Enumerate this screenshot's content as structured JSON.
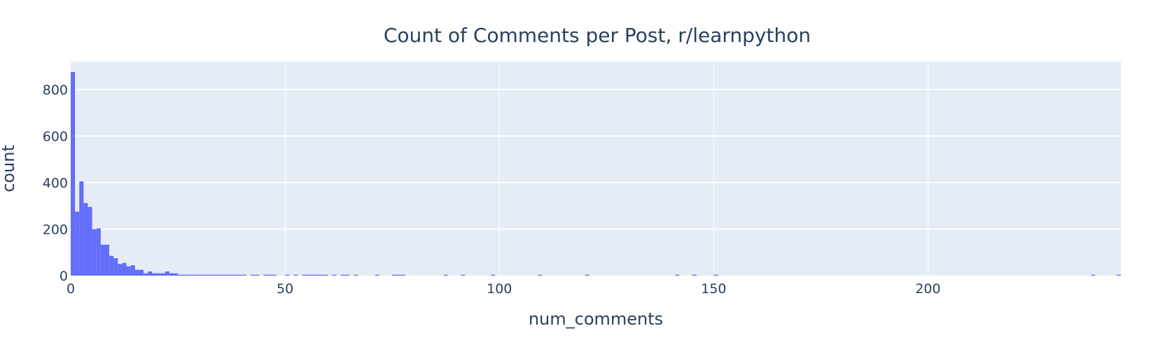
{
  "chart_data": {
    "type": "bar",
    "title": "Count of Comments per Post, r/learnpython",
    "xlabel": "num_comments",
    "ylabel": "count",
    "xlim": [
      0,
      245
    ],
    "ylim": [
      0,
      920
    ],
    "xticks": [
      0,
      50,
      100,
      150,
      200
    ],
    "yticks": [
      0,
      200,
      400,
      600,
      800
    ],
    "grid": true,
    "colors": {
      "bar": "#636efa",
      "plot_bg": "#e5ecf6",
      "grid": "#ffffff",
      "text": "#2a3f5f"
    },
    "bin_width": 1,
    "bins": [
      {
        "x": 0,
        "y": 875
      },
      {
        "x": 1,
        "y": 275
      },
      {
        "x": 2,
        "y": 405
      },
      {
        "x": 3,
        "y": 312
      },
      {
        "x": 4,
        "y": 295
      },
      {
        "x": 5,
        "y": 200
      },
      {
        "x": 6,
        "y": 203
      },
      {
        "x": 7,
        "y": 133
      },
      {
        "x": 8,
        "y": 133
      },
      {
        "x": 9,
        "y": 85
      },
      {
        "x": 10,
        "y": 75
      },
      {
        "x": 11,
        "y": 50
      },
      {
        "x": 12,
        "y": 55
      },
      {
        "x": 13,
        "y": 40
      },
      {
        "x": 14,
        "y": 45
      },
      {
        "x": 15,
        "y": 25
      },
      {
        "x": 16,
        "y": 25
      },
      {
        "x": 17,
        "y": 10
      },
      {
        "x": 18,
        "y": 18
      },
      {
        "x": 19,
        "y": 10
      },
      {
        "x": 20,
        "y": 10
      },
      {
        "x": 21,
        "y": 10
      },
      {
        "x": 22,
        "y": 18
      },
      {
        "x": 23,
        "y": 10
      },
      {
        "x": 24,
        "y": 10
      },
      {
        "x": 25,
        "y": 4
      },
      {
        "x": 26,
        "y": 4
      },
      {
        "x": 27,
        "y": 4
      },
      {
        "x": 28,
        "y": 4
      },
      {
        "x": 29,
        "y": 4
      },
      {
        "x": 30,
        "y": 4
      },
      {
        "x": 31,
        "y": 4
      },
      {
        "x": 32,
        "y": 4
      },
      {
        "x": 33,
        "y": 4
      },
      {
        "x": 34,
        "y": 4
      },
      {
        "x": 35,
        "y": 4
      },
      {
        "x": 36,
        "y": 4
      },
      {
        "x": 37,
        "y": 4
      },
      {
        "x": 38,
        "y": 4
      },
      {
        "x": 39,
        "y": 4
      },
      {
        "x": 40,
        "y": 4
      },
      {
        "x": 42,
        "y": 4
      },
      {
        "x": 43,
        "y": 4
      },
      {
        "x": 45,
        "y": 4
      },
      {
        "x": 46,
        "y": 4
      },
      {
        "x": 47,
        "y": 4
      },
      {
        "x": 50,
        "y": 4
      },
      {
        "x": 52,
        "y": 4
      },
      {
        "x": 54,
        "y": 4
      },
      {
        "x": 55,
        "y": 4
      },
      {
        "x": 56,
        "y": 4
      },
      {
        "x": 57,
        "y": 4
      },
      {
        "x": 58,
        "y": 4
      },
      {
        "x": 59,
        "y": 4
      },
      {
        "x": 61,
        "y": 4
      },
      {
        "x": 63,
        "y": 4
      },
      {
        "x": 64,
        "y": 4
      },
      {
        "x": 66,
        "y": 4
      },
      {
        "x": 71,
        "y": 4
      },
      {
        "x": 75,
        "y": 4
      },
      {
        "x": 76,
        "y": 4
      },
      {
        "x": 77,
        "y": 4
      },
      {
        "x": 87,
        "y": 4
      },
      {
        "x": 91,
        "y": 4
      },
      {
        "x": 98,
        "y": 4
      },
      {
        "x": 109,
        "y": 4
      },
      {
        "x": 120,
        "y": 4
      },
      {
        "x": 141,
        "y": 4
      },
      {
        "x": 145,
        "y": 4
      },
      {
        "x": 150,
        "y": 4
      },
      {
        "x": 238,
        "y": 4
      },
      {
        "x": 244,
        "y": 4
      }
    ]
  }
}
